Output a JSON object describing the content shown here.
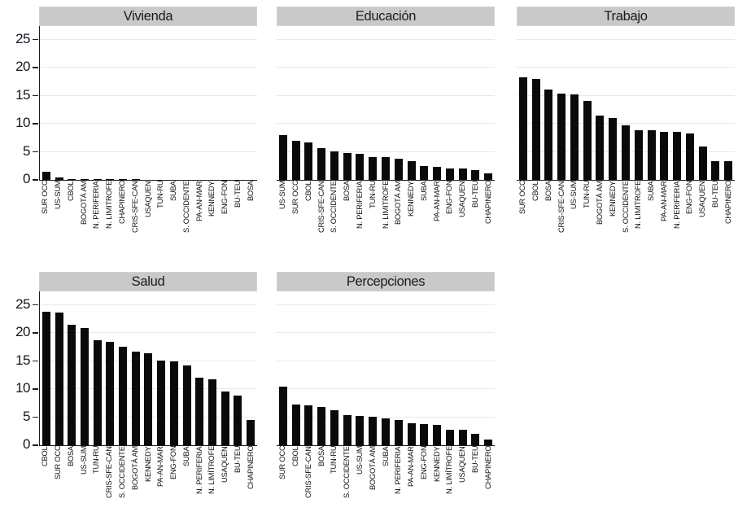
{
  "figure": {
    "background": "#ffffff",
    "bar_color": "#0a0a0a",
    "title_band_color": "#c9c9c9",
    "gridline_color": "#e0ebeb",
    "axis_color": "#1c1c1c"
  },
  "chart_data": [
    {
      "type": "bar",
      "title": "Vivienda",
      "slug": "vivienda",
      "show_y_labels": true,
      "yticks": [
        0,
        5,
        10,
        15,
        20,
        25
      ],
      "ylim": [
        0,
        25
      ],
      "grid": true,
      "categories": [
        "SUR OCC",
        "US-SUM",
        "CBOL",
        "BOGOTÁ AM",
        "N. PERIFERIA",
        "N. LIMITROFE",
        "CHAPINERO",
        "CRIS-SFE-CAN",
        "USAQUEN",
        "TUN-RU",
        "SUBA",
        "S. OCCIDENTE",
        "PA-AN-MAR",
        "KENNEDY",
        "ENG-FON",
        "BU-TEU",
        "BOSA"
      ],
      "values": [
        1.4,
        0.5,
        0.2,
        0.2,
        0.2,
        0.2,
        0.2,
        0.2,
        0,
        0,
        0,
        0,
        0,
        0,
        0,
        0,
        0
      ]
    },
    {
      "type": "bar",
      "title": "Educación",
      "slug": "educacion",
      "show_y_labels": false,
      "yticks": [
        0,
        5,
        10,
        15,
        20,
        25
      ],
      "ylim": [
        0,
        25
      ],
      "grid": true,
      "categories": [
        "US-SUM",
        "SUR OCC",
        "CBOL",
        "CRIS-SFE-CAN",
        "S. OCCIDENTE",
        "BOSA",
        "N. PERIFERIA",
        "TUN-RU",
        "N. LIMITROFE",
        "BOGOTÁ AM",
        "KENNEDY",
        "SUBA",
        "PA-AN-MAR",
        "ENG-FON",
        "USAQUEN",
        "BU-TEU",
        "CHAPINERO"
      ],
      "values": [
        8.0,
        6.9,
        6.6,
        5.6,
        5.1,
        4.8,
        4.7,
        4.1,
        4.0,
        3.8,
        3.4,
        2.5,
        2.3,
        2.1,
        2.0,
        1.8,
        1.2
      ]
    },
    {
      "type": "bar",
      "title": "Trabajo",
      "slug": "trabajo",
      "show_y_labels": false,
      "yticks": [
        0,
        5,
        10,
        15,
        20,
        25
      ],
      "ylim": [
        0,
        25
      ],
      "grid": true,
      "categories": [
        "SUR OCC",
        "CBOL",
        "BOSA",
        "CRIS-SFE-CAN",
        "US-SUM",
        "TUN-RU",
        "BOGOTÁ AM",
        "KENNEDY",
        "S. OCCIDENTE",
        "N. LIMITROFE",
        "SUBA",
        "PA-AN-MAR",
        "N. PERIFERIA",
        "ENG-FON",
        "USAQUEN",
        "BU-TEU",
        "CHAPINERO"
      ],
      "values": [
        18.2,
        18.0,
        16.1,
        15.3,
        15.2,
        14.0,
        11.4,
        11.0,
        9.7,
        8.9,
        8.9,
        8.6,
        8.6,
        8.3,
        6.0,
        3.4,
        3.3
      ]
    },
    {
      "type": "bar",
      "title": "Salud",
      "slug": "salud",
      "show_y_labels": true,
      "yticks": [
        0,
        5,
        10,
        15,
        20,
        25
      ],
      "ylim": [
        0,
        25
      ],
      "grid": true,
      "categories": [
        "CBOL",
        "SUR OCC",
        "BOSA",
        "US-SUM",
        "TUN-RU",
        "CRIS-SFE-CAN",
        "S. OCCIDENTE",
        "BOGOTÁ AM",
        "KENNEDY",
        "PA-AN-MAR",
        "ENG-FON",
        "SUBA",
        "N. PERIFERIA",
        "N. LIMÍTROFE",
        "USAQUEN",
        "BU-TEU",
        "CHAPINERO"
      ],
      "values": [
        23.7,
        23.6,
        21.5,
        20.8,
        18.7,
        18.4,
        17.6,
        16.6,
        16.4,
        15.1,
        15.0,
        14.2,
        12.0,
        11.8,
        9.5,
        8.8,
        4.5
      ]
    },
    {
      "type": "bar",
      "title": "Percepciones",
      "slug": "percepciones",
      "show_y_labels": false,
      "yticks": [
        0,
        5,
        10,
        15,
        20,
        25
      ],
      "ylim": [
        0,
        25
      ],
      "grid": true,
      "categories": [
        "SUR OCC",
        "CBOL",
        "CRIS-SFE-CAN",
        "BOSA",
        "TUN-RU",
        "S. OCCIDENTE",
        "US-SUM",
        "BOGOTÁ AM",
        "SUBA",
        "N. PERIFERIA",
        "PA-AN-MAR",
        "ENG-FON",
        "KENNEDY",
        "N. LIMÍTROFE",
        "USAQUEN",
        "BU-TEU",
        "CHAPINERO"
      ],
      "values": [
        10.4,
        7.2,
        7.1,
        6.8,
        6.3,
        5.4,
        5.2,
        5.1,
        4.8,
        4.5,
        3.9,
        3.8,
        3.6,
        2.8,
        2.7,
        2.1,
        1.0
      ]
    }
  ]
}
